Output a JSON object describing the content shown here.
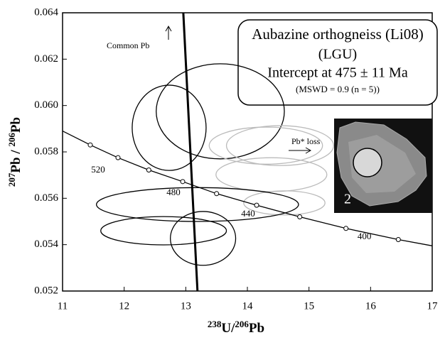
{
  "chart_data": {
    "type": "concordia",
    "x_label": [
      "238",
      "U/",
      "206",
      "Pb"
    ],
    "y_label": [
      "207",
      "Pb",
      " / ",
      "206",
      "Pb"
    ],
    "xlim": [
      11,
      17
    ],
    "ylim": [
      0.052,
      0.064
    ],
    "xticks": [
      11,
      12,
      13,
      14,
      15,
      16,
      17
    ],
    "yticks": [
      0.052,
      0.054,
      0.056,
      0.058,
      {
        "value": 0.06,
        "label": "0.060"
      },
      0.062,
      0.064
    ],
    "curve": {
      "color": "#000000",
      "x": [
        11,
        11.45,
        11.9,
        12.4,
        12.95,
        13.5,
        14.15,
        14.85,
        15.6,
        16.45,
        17
      ],
      "values": [
        0.0589,
        0.0583,
        0.05775,
        0.05722,
        0.05672,
        0.0562,
        0.0557,
        0.0552,
        0.0547,
        0.05422,
        0.05395
      ]
    },
    "age_markers": {
      "x": [
        11.45,
        11.9,
        12.4,
        12.95,
        13.5,
        14.15,
        14.85,
        15.6,
        16.45
      ],
      "values": [
        0.0583,
        0.05775,
        0.05722,
        0.05672,
        0.0562,
        0.0557,
        0.0552,
        0.0547,
        0.05422
      ],
      "labels": [
        null,
        520,
        null,
        480,
        null,
        440,
        null,
        400,
        null
      ]
    },
    "regression_line": {
      "color": "#000000",
      "x": [
        12.96,
        13.19
      ],
      "values": [
        0.064,
        0.052
      ]
    },
    "ellipses": [
      {
        "x": 12.73,
        "y": 0.05904,
        "rx": 0.6,
        "ry": 0.00184,
        "color": "#000000"
      },
      {
        "x": 13.56,
        "y": 0.05975,
        "rx": 1.04,
        "ry": 0.00205,
        "color": "#000000"
      },
      {
        "x": 14.3,
        "y": 0.05827,
        "rx": 0.92,
        "ry": 0.0008,
        "color": "#bbbbbb"
      },
      {
        "x": 14.53,
        "y": 0.05827,
        "rx": 0.87,
        "ry": 0.00086,
        "color": "#bbbbbb"
      },
      {
        "x": 14.39,
        "y": 0.05702,
        "rx": 0.9,
        "ry": 0.00073,
        "color": "#bbbbbb"
      },
      {
        "x": 14.6,
        "y": 0.0558,
        "rx": 0.66,
        "ry": 0.00052,
        "color": "#bbbbbb"
      },
      {
        "x": 13.19,
        "y": 0.05573,
        "rx": 1.64,
        "ry": 0.00073,
        "color": "#000000"
      },
      {
        "x": 12.64,
        "y": 0.0546,
        "rx": 1.02,
        "ry": 0.00061,
        "color": "#000000"
      },
      {
        "x": 13.28,
        "y": 0.05427,
        "rx": 0.53,
        "ry": 0.00116,
        "color": "#000000"
      }
    ],
    "annotations": {
      "common_pb": "Common Pb",
      "pb_loss": "Pb* loss",
      "grain_label": "2"
    },
    "info_box": [
      "Aubazine orthogneiss (Li08)",
      "(LGU)",
      "Intercept at 475 ± 11 Ma",
      "(MSWD = 0.9 (n = 5))"
    ]
  }
}
